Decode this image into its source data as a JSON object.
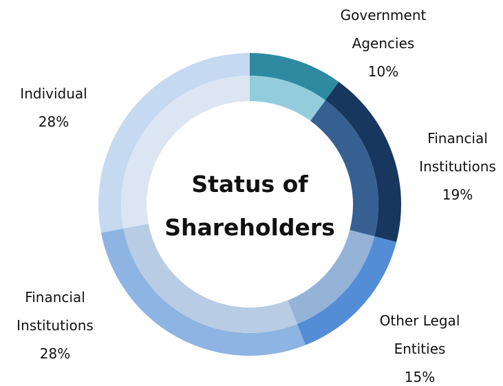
{
  "chart_data": {
    "type": "donut",
    "title": "Status of Shareholders",
    "categories": [
      "Government Agencies",
      "Financial Institutions",
      "Other Legal Entities",
      "Financial Institutions",
      "Individual"
    ],
    "values": [
      10,
      19,
      15,
      28,
      28
    ],
    "value_labels": [
      "10%",
      "19%",
      "15%",
      "28%",
      "28%"
    ],
    "colors": [
      "#2e8aa0",
      "#17375e",
      "#538dd5",
      "#8db4e2",
      "#c5d9f1"
    ],
    "inner_colors": [
      "#93cddd",
      "#366092",
      "#95b3d7",
      "#b8cce4",
      "#dce6f2"
    ]
  }
}
